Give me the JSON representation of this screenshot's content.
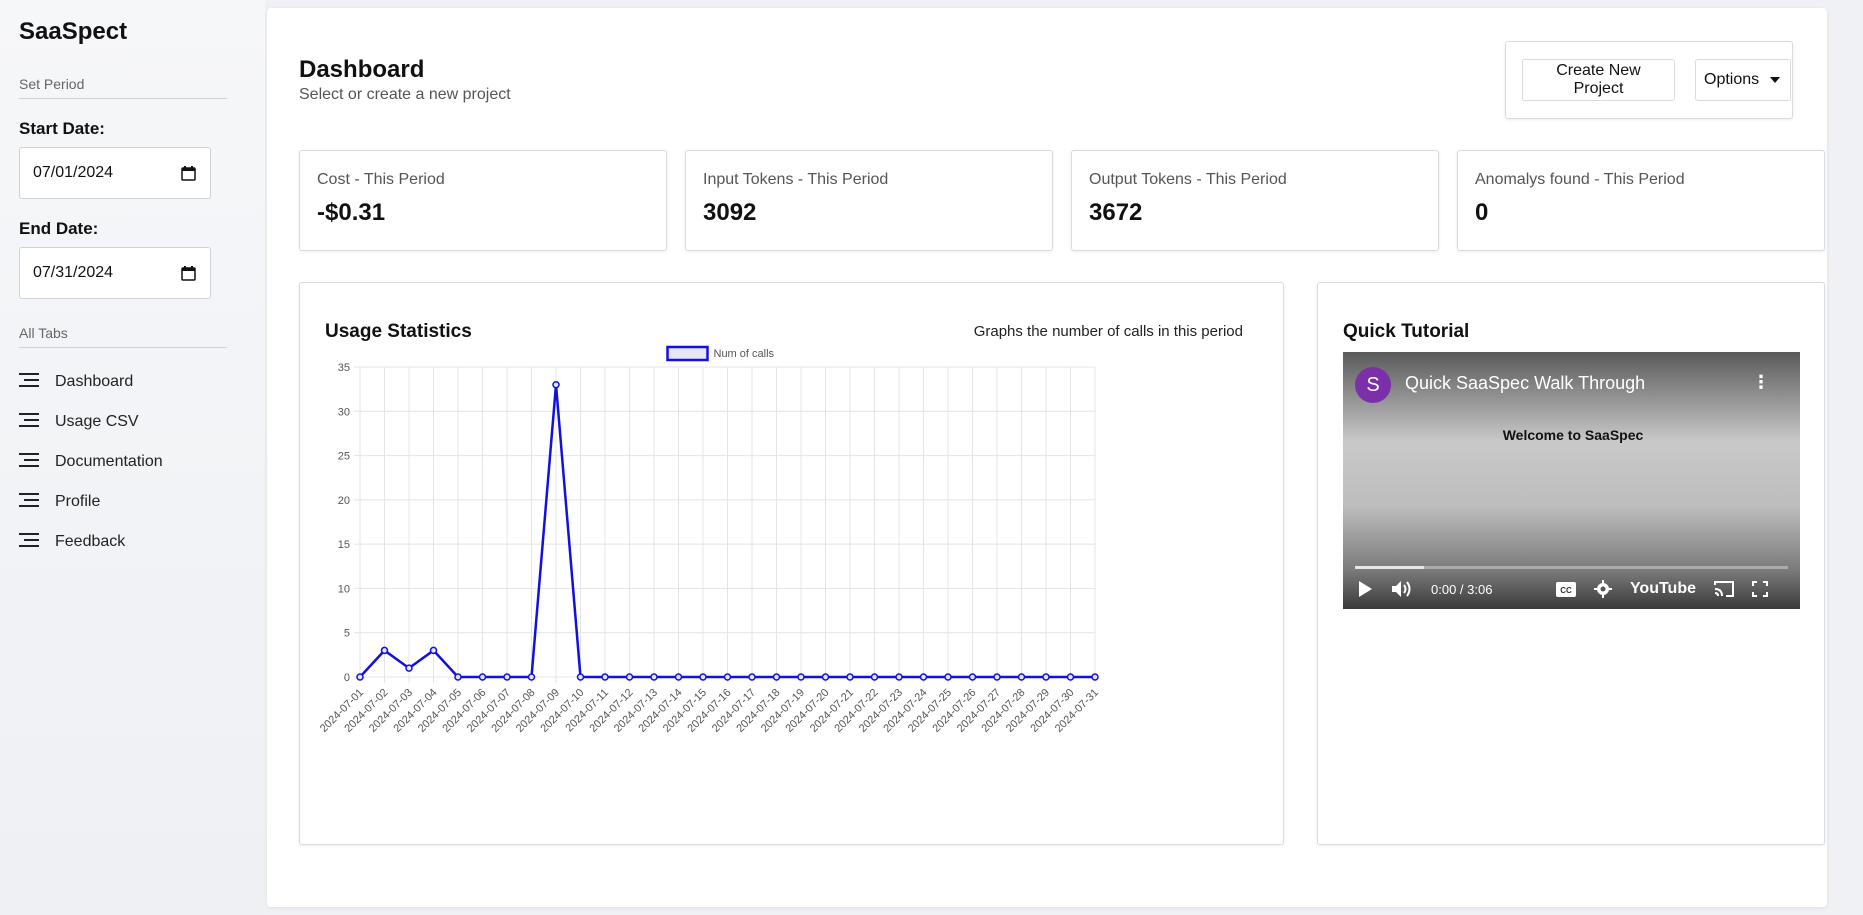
{
  "brand": "SaaSpect",
  "sidebar": {
    "period_label": "Set Period",
    "start_label": "Start Date:",
    "start_value": "07/01/2024",
    "end_label": "End Date:",
    "end_value": "07/31/2024",
    "tabs_label": "All Tabs",
    "items": [
      {
        "label": "Dashboard",
        "icon": "menu-icon"
      },
      {
        "label": "Usage CSV",
        "icon": "menu-icon"
      },
      {
        "label": "Documentation",
        "icon": "menu-icon"
      },
      {
        "label": "Profile",
        "icon": "menu-icon"
      },
      {
        "label": "Feedback",
        "icon": "menu-icon"
      }
    ]
  },
  "header": {
    "title": "Dashboard",
    "subtitle": "Select or create a new project",
    "create_label": "Create New Project",
    "options_label": "Options"
  },
  "stats": [
    {
      "label": "Cost - This Period",
      "value": "-$0.31"
    },
    {
      "label": "Input Tokens - This Period",
      "value": "3092"
    },
    {
      "label": "Output Tokens - This Period",
      "value": "3672"
    },
    {
      "label": "Anomalys found - This Period",
      "value": "0"
    }
  ],
  "usage": {
    "title": "Usage Statistics",
    "description": "Graphs the number of calls in this period"
  },
  "tutorial": {
    "title": "Quick Tutorial",
    "video_avatar": "S",
    "video_title": "Quick SaaSpec Walk Through",
    "video_welcome": "Welcome to SaaSpec",
    "video_time": "0:00 / 3:06",
    "video_brand": "YouTube",
    "progress": 0.16
  },
  "colors": {
    "line": "#1010e0",
    "grid": "#e4e4e4"
  },
  "chart_data": {
    "type": "line",
    "title": "",
    "xlabel": "",
    "ylabel": "",
    "categories": [
      "2024-07-01",
      "2024-07-02",
      "2024-07-03",
      "2024-07-04",
      "2024-07-05",
      "2024-07-06",
      "2024-07-07",
      "2024-07-08",
      "2024-07-09",
      "2024-07-10",
      "2024-07-11",
      "2024-07-12",
      "2024-07-13",
      "2024-07-14",
      "2024-07-15",
      "2024-07-16",
      "2024-07-17",
      "2024-07-18",
      "2024-07-19",
      "2024-07-20",
      "2024-07-21",
      "2024-07-22",
      "2024-07-23",
      "2024-07-24",
      "2024-07-25",
      "2024-07-26",
      "2024-07-27",
      "2024-07-28",
      "2024-07-29",
      "2024-07-30",
      "2024-07-31"
    ],
    "series": [
      {
        "name": "Num of calls",
        "values": [
          0,
          3,
          1,
          3,
          0,
          0,
          0,
          0,
          33,
          0,
          0,
          0,
          0,
          0,
          0,
          0,
          0,
          0,
          0,
          0,
          0,
          0,
          0,
          0,
          0,
          0,
          0,
          0,
          0,
          0,
          0
        ]
      }
    ],
    "ylim": [
      0,
      35
    ],
    "yticks": [
      0,
      5,
      10,
      15,
      20,
      25,
      30,
      35
    ],
    "grid": true,
    "legend": "top-center"
  }
}
